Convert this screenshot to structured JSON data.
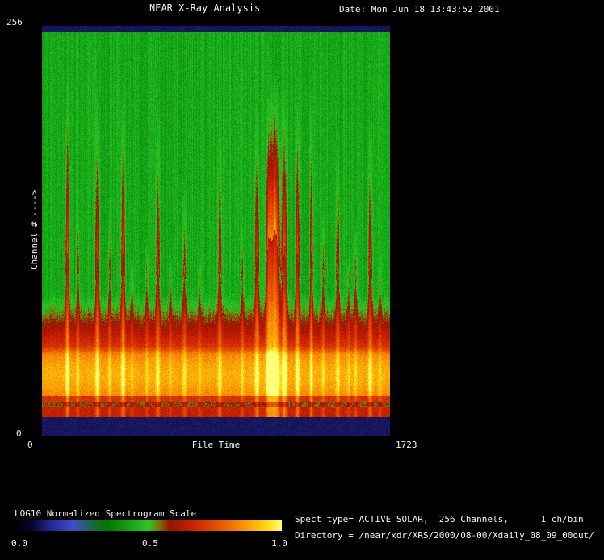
{
  "window": {
    "bg": "#000000",
    "text_color": "#f2f2f2"
  },
  "header": {
    "title": "NEAR X-Ray Analysis",
    "date_label": "Date: Mon Jun 18 13:43:52 2001"
  },
  "plot": {
    "y_axis": {
      "top_label": "256",
      "bottom_label": "0",
      "axis_label": "Channel # ---->"
    },
    "x_axis": {
      "left_label": "0",
      "center_label": "File Time",
      "right_label": "1723"
    }
  },
  "colorbar": {
    "title": "LOG10 Normalized Spectrogram Scale",
    "ticks": [
      "0.0",
      "0.5",
      "1.0"
    ]
  },
  "info": {
    "line1": "Spect type= ACTIVE SOLAR,  256 Channels,      1 ch/bin",
    "line2": "Directory = /near/xdr/XRS/2000/08-00/Xdaily_08_09_00out/"
  },
  "chart_data": {
    "type": "heatmap",
    "title": "NEAR X-Ray Analysis",
    "xlabel": "File Time",
    "ylabel": "Channel #",
    "x_range": [
      0,
      1723
    ],
    "y_range": [
      0,
      256
    ],
    "channels": 256,
    "bin": "1 ch/bin",
    "spect_type": "ACTIVE SOLAR",
    "value_scale": {
      "label": "LOG10 Normalized Spectrogram Scale",
      "range": [
        0.0,
        1.0
      ],
      "ticks": [
        0.0,
        0.5,
        1.0
      ]
    },
    "colormap": [
      [
        0.0,
        "#000000"
      ],
      [
        0.06,
        "#050528"
      ],
      [
        0.14,
        "#282896"
      ],
      [
        0.22,
        "#3c50c8"
      ],
      [
        0.28,
        "#1e6450"
      ],
      [
        0.35,
        "#007800"
      ],
      [
        0.5,
        "#28c828"
      ],
      [
        0.54,
        "#787800"
      ],
      [
        0.58,
        "#961400"
      ],
      [
        0.66,
        "#c81e00"
      ],
      [
        0.76,
        "#e65000"
      ],
      [
        0.86,
        "#fa9600"
      ],
      [
        0.95,
        "#ffdc14"
      ],
      [
        1.0,
        "#ffff78"
      ]
    ],
    "profile": {
      "edge_band_level": 0.1,
      "top_band_end": 0.012,
      "bottom_band_start": 0.952,
      "green_level": 0.44,
      "green_boundary": 0.655,
      "ramp_end": 0.78,
      "ramp_level": 0.7,
      "rise_end": 0.8,
      "rise_level": 0.84,
      "bright_end": 0.9,
      "bright_amp": 0.05,
      "red_end": 0.915,
      "red_level": 0.7,
      "dip_end": 0.928,
      "dip_level": 0.56,
      "lower_red_level": 0.66
    },
    "flares": [
      {
        "x": 0.072,
        "w": 0.004,
        "s": 0.3,
        "top": 0.1
      },
      {
        "x": 0.102,
        "w": 0.003,
        "s": 0.18,
        "top": 0.38
      },
      {
        "x": 0.158,
        "w": 0.004,
        "s": 0.28,
        "top": 0.13
      },
      {
        "x": 0.193,
        "w": 0.003,
        "s": 0.16,
        "top": 0.4
      },
      {
        "x": 0.232,
        "w": 0.004,
        "s": 0.3,
        "top": 0.12
      },
      {
        "x": 0.258,
        "w": 0.003,
        "s": 0.12,
        "top": 0.55
      },
      {
        "x": 0.3,
        "w": 0.003,
        "s": 0.14,
        "top": 0.5
      },
      {
        "x": 0.332,
        "w": 0.004,
        "s": 0.24,
        "top": 0.18
      },
      {
        "x": 0.368,
        "w": 0.003,
        "s": 0.12,
        "top": 0.55
      },
      {
        "x": 0.408,
        "w": 0.004,
        "s": 0.18,
        "top": 0.35
      },
      {
        "x": 0.452,
        "w": 0.003,
        "s": 0.12,
        "top": 0.55
      },
      {
        "x": 0.51,
        "w": 0.004,
        "s": 0.22,
        "top": 0.22
      },
      {
        "x": 0.575,
        "w": 0.003,
        "s": 0.14,
        "top": 0.48
      },
      {
        "x": 0.617,
        "w": 0.005,
        "s": 0.26,
        "top": 0.2
      },
      {
        "x": 0.65,
        "w": 0.006,
        "s": 0.3,
        "top": 0.16
      },
      {
        "x": 0.668,
        "w": 0.01,
        "s": 0.45,
        "top": 0.1
      },
      {
        "x": 0.696,
        "w": 0.005,
        "s": 0.32,
        "top": 0.14
      },
      {
        "x": 0.733,
        "w": 0.004,
        "s": 0.3,
        "top": 0.15
      },
      {
        "x": 0.773,
        "w": 0.003,
        "s": 0.28,
        "top": 0.13
      },
      {
        "x": 0.807,
        "w": 0.003,
        "s": 0.16,
        "top": 0.42
      },
      {
        "x": 0.849,
        "w": 0.004,
        "s": 0.22,
        "top": 0.25
      },
      {
        "x": 0.88,
        "w": 0.003,
        "s": 0.12,
        "top": 0.55
      },
      {
        "x": 0.9,
        "w": 0.003,
        "s": 0.16,
        "top": 0.45
      },
      {
        "x": 0.942,
        "w": 0.004,
        "s": 0.24,
        "top": 0.2
      },
      {
        "x": 0.97,
        "w": 0.003,
        "s": 0.12,
        "top": 0.55
      }
    ]
  }
}
